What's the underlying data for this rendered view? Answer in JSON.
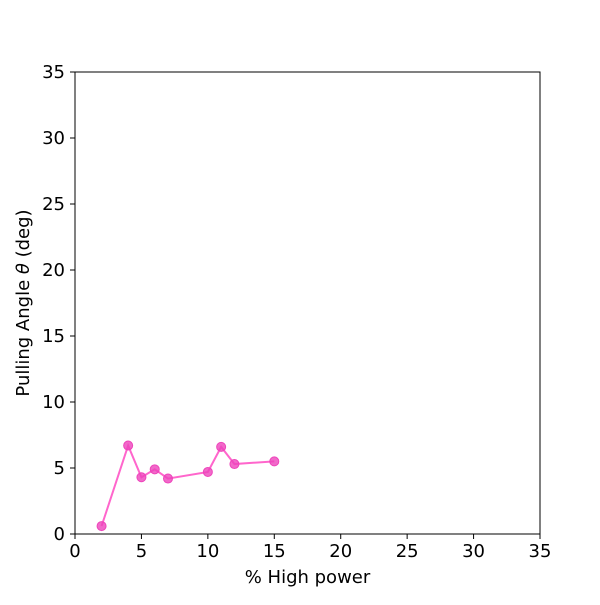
{
  "chart_data": {
    "type": "line",
    "xlabel": "% High power",
    "ylabel_prefix": "Pulling Angle ",
    "ylabel_symbol": "θ",
    "ylabel_suffix": " (deg)",
    "xlim": [
      0,
      35
    ],
    "ylim": [
      0,
      35
    ],
    "xticks": [
      0,
      5,
      10,
      15,
      20,
      25,
      30,
      35
    ],
    "yticks": [
      0,
      5,
      10,
      15,
      20,
      25,
      30,
      35
    ],
    "grid": false,
    "series": [
      {
        "color": "#ff66cc",
        "marker_color": "#ee44bb",
        "points": [
          {
            "x": 2,
            "y": 0.6
          },
          {
            "x": 4,
            "y": 6.7
          },
          {
            "x": 5,
            "y": 4.3
          },
          {
            "x": 6,
            "y": 4.9
          },
          {
            "x": 7,
            "y": 4.2
          },
          {
            "x": 10,
            "y": 4.7
          },
          {
            "x": 11,
            "y": 6.6
          },
          {
            "x": 12,
            "y": 5.3
          },
          {
            "x": 15,
            "y": 5.5
          }
        ]
      }
    ]
  }
}
